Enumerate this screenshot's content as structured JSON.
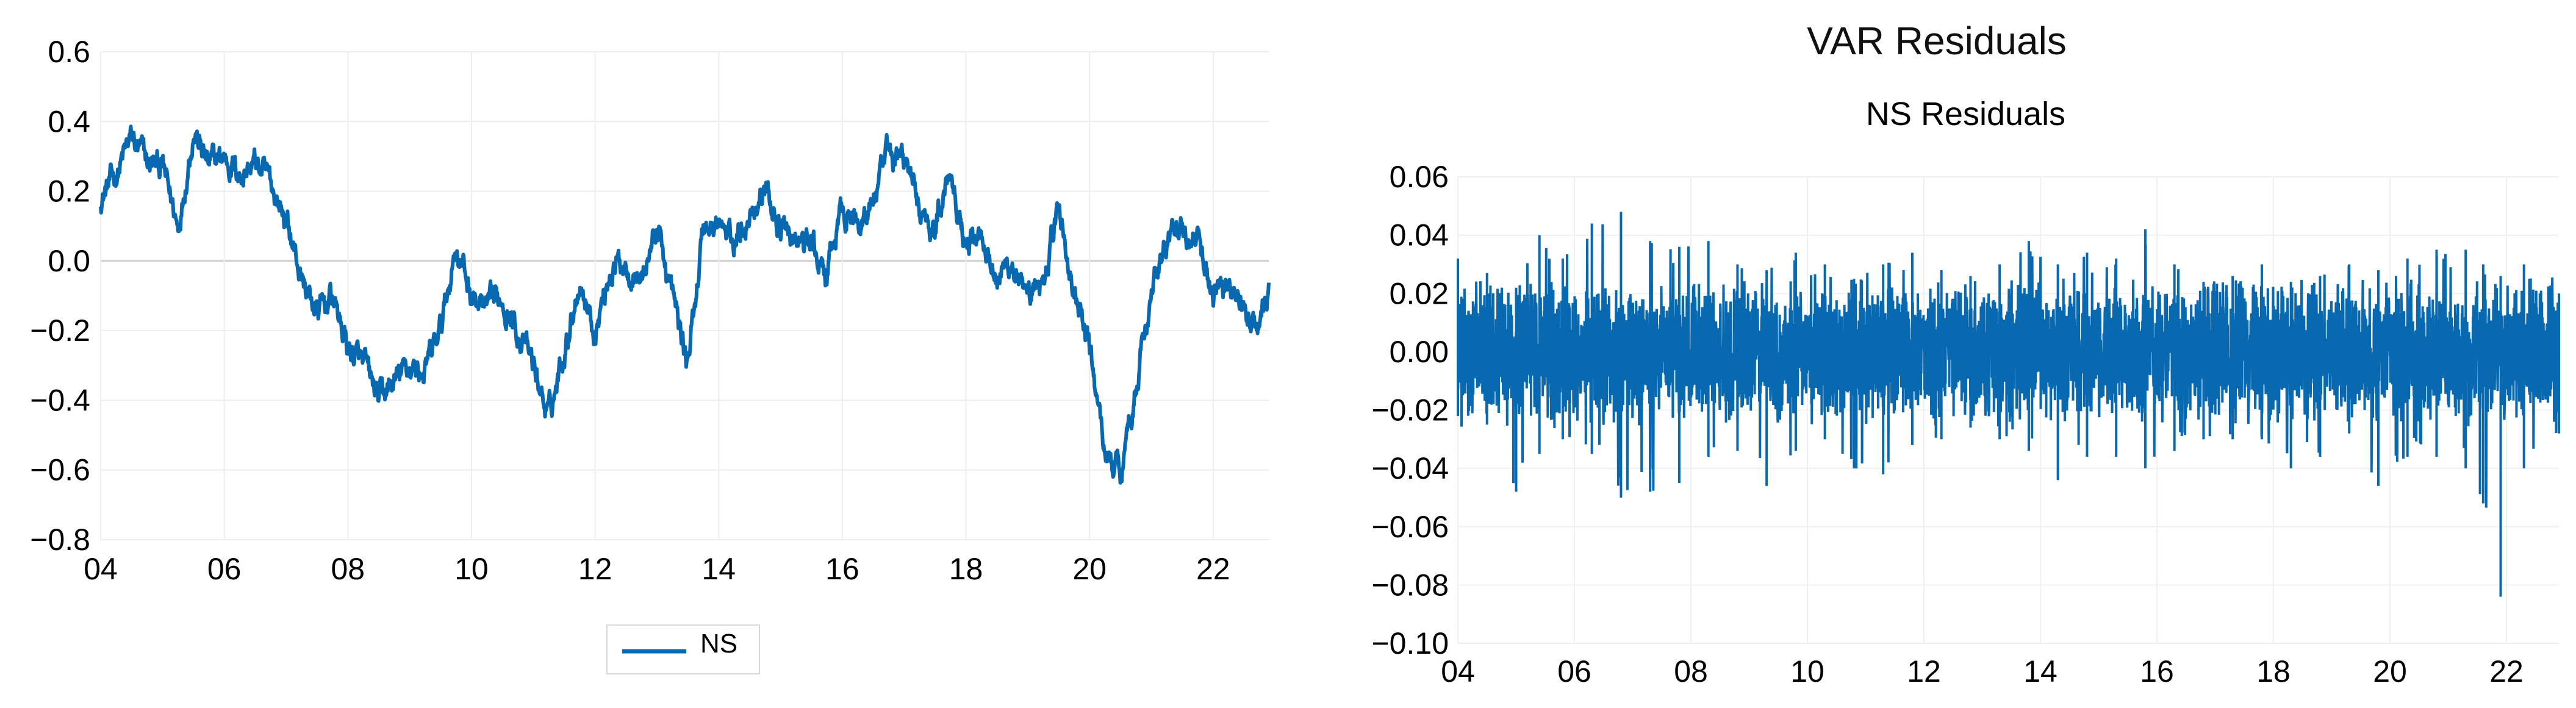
{
  "figure": {
    "title": "VAR Residuals"
  },
  "chart_data": [
    {
      "type": "line",
      "title": "",
      "xlabel": "",
      "ylabel": "",
      "x_tick_labels": [
        "04",
        "06",
        "08",
        "10",
        "12",
        "14",
        "16",
        "18",
        "20",
        "22"
      ],
      "y_tick_labels": [
        "0.6",
        "0.4",
        "0.2",
        "0.0",
        "−0.2",
        "−0.4",
        "−0.6",
        "−0.8"
      ],
      "ylim": [
        -0.8,
        0.6
      ],
      "xlim": [
        2004,
        2022.9
      ],
      "grid": true,
      "legend": {
        "placement": "bottom-center",
        "entries": [
          "NS"
        ]
      },
      "color": "#0868b0",
      "series": [
        {
          "name": "NS",
          "x": [
            2004.0,
            2004.25,
            2004.5,
            2004.75,
            2005.0,
            2005.25,
            2005.5,
            2005.75,
            2006.0,
            2006.25,
            2006.5,
            2006.75,
            2007.0,
            2007.25,
            2007.5,
            2007.75,
            2008.0,
            2008.25,
            2008.5,
            2008.75,
            2009.0,
            2009.25,
            2009.5,
            2009.75,
            2010.0,
            2010.25,
            2010.5,
            2010.75,
            2011.0,
            2011.25,
            2011.5,
            2011.75,
            2012.0,
            2012.25,
            2012.5,
            2012.75,
            2013.0,
            2013.25,
            2013.5,
            2013.75,
            2014.0,
            2014.25,
            2014.5,
            2014.75,
            2015.0,
            2015.25,
            2015.5,
            2015.75,
            2016.0,
            2016.25,
            2016.5,
            2016.75,
            2017.0,
            2017.25,
            2017.5,
            2017.75,
            2018.0,
            2018.25,
            2018.5,
            2018.75,
            2019.0,
            2019.25,
            2019.5,
            2019.75,
            2020.0,
            2020.25,
            2020.5,
            2020.75,
            2021.0,
            2021.25,
            2021.5,
            2021.75,
            2022.0,
            2022.25,
            2022.5,
            2022.75,
            2022.9
          ],
          "values": [
            0.18,
            0.25,
            0.35,
            0.28,
            0.27,
            0.1,
            0.38,
            0.27,
            0.3,
            0.25,
            0.28,
            0.22,
            0.12,
            -0.05,
            -0.15,
            -0.1,
            -0.25,
            -0.3,
            -0.4,
            -0.35,
            -0.3,
            -0.32,
            -0.2,
            0.05,
            -0.1,
            -0.15,
            -0.1,
            -0.2,
            -0.3,
            -0.45,
            -0.25,
            -0.05,
            -0.2,
            -0.02,
            0.0,
            -0.05,
            0.1,
            -0.1,
            -0.3,
            0.1,
            0.1,
            0.05,
            0.15,
            0.2,
            0.1,
            0.05,
            0.05,
            -0.05,
            0.15,
            0.1,
            0.18,
            0.3,
            0.3,
            0.15,
            0.1,
            0.28,
            0.05,
            0.1,
            -0.05,
            0.0,
            -0.15,
            -0.05,
            0.15,
            -0.1,
            -0.25,
            -0.55,
            -0.6,
            -0.35,
            -0.1,
            0.05,
            0.1,
            0.05,
            -0.1,
            -0.05,
            -0.15,
            -0.2,
            -0.1
          ]
        }
      ]
    },
    {
      "type": "line",
      "title": "NS Residuals",
      "xlabel": "",
      "ylabel": "",
      "x_tick_labels": [
        "04",
        "06",
        "08",
        "10",
        "12",
        "14",
        "16",
        "18",
        "20",
        "22"
      ],
      "y_tick_labels": [
        "0.06",
        "0.04",
        "0.02",
        "0.00",
        "−0.02",
        "−0.04",
        "−0.06",
        "−0.08",
        "−0.10"
      ],
      "ylim": [
        -0.1,
        0.06
      ],
      "xlim": [
        2004,
        2022.9
      ],
      "grid": true,
      "legend": null,
      "color": "#0868b0",
      "series": [
        {
          "x": [
            2004.0,
            2004.5,
            2005.0,
            2005.4,
            2005.8,
            2006.3,
            2006.8,
            2007.3,
            2007.8,
            2008.3,
            2008.8,
            2009.3,
            2009.8,
            2010.3,
            2010.8,
            2011.3,
            2011.8,
            2012.3,
            2012.8,
            2013.3,
            2013.8,
            2014.3,
            2014.8,
            2015.3,
            2015.8,
            2016.3,
            2016.8,
            2017.3,
            2017.8,
            2018.3,
            2018.8,
            2019.3,
            2019.8,
            2020.3,
            2020.8,
            2021.3,
            2021.6,
            2021.9,
            2022.3,
            2022.9
          ],
          "upper_envelope": [
            0.032,
            0.027,
            0.022,
            0.04,
            0.032,
            0.044,
            0.048,
            0.038,
            0.036,
            0.038,
            0.03,
            0.028,
            0.034,
            0.03,
            0.025,
            0.03,
            0.034,
            0.028,
            0.026,
            0.03,
            0.038,
            0.03,
            0.034,
            0.032,
            0.042,
            0.03,
            0.024,
            0.026,
            0.03,
            0.024,
            0.026,
            0.03,
            0.028,
            0.032,
            0.035,
            0.035,
            0.03,
            0.026,
            0.03,
            0.02
          ],
          "lower_envelope": [
            -0.022,
            -0.025,
            -0.048,
            -0.035,
            -0.03,
            -0.035,
            -0.05,
            -0.048,
            -0.045,
            -0.036,
            -0.034,
            -0.046,
            -0.034,
            -0.03,
            -0.04,
            -0.042,
            -0.032,
            -0.03,
            -0.026,
            -0.03,
            -0.034,
            -0.044,
            -0.036,
            -0.036,
            -0.04,
            -0.034,
            -0.03,
            -0.03,
            -0.03,
            -0.04,
            -0.036,
            -0.028,
            -0.046,
            -0.036,
            -0.036,
            -0.04,
            -0.052,
            -0.084,
            -0.04,
            -0.028
          ]
        }
      ]
    }
  ]
}
